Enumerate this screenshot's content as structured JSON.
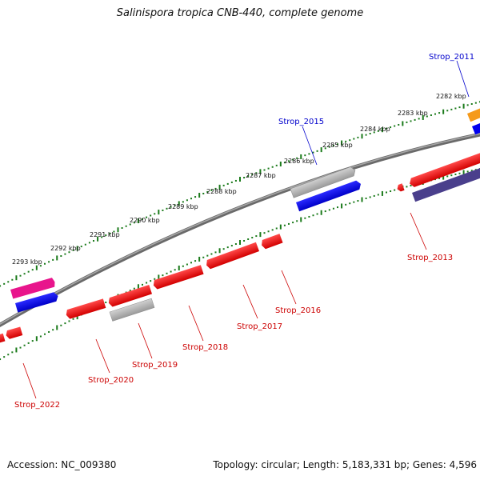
{
  "title": "Salinispora tropica CNB-440, complete genome",
  "footer": {
    "accession": "Accession: NC_009380",
    "summary": "Topology: circular; Length: 5,183,331 bp; Genes: 4,596"
  },
  "ruler": {
    "tick_color": "#1a7a1a",
    "labels": [
      "2282 kbp",
      "2283 kbp",
      "2284 kbp",
      "2285 kbp",
      "2286 kbp",
      "2287 kbp",
      "2288 kbp",
      "2289 kbp",
      "2290 kbp",
      "2291 kbp",
      "2292 kbp",
      "2293 kbp"
    ]
  },
  "colors": {
    "backbone": "#808080",
    "cds": "#ee0000",
    "blue": "#0000ee",
    "gray": "#b5b5b5",
    "magenta": "#e8158c",
    "orange": "#f59a1a",
    "navy": "#4a3f8c",
    "label_above": "#0000cc",
    "label_below": "#cc0000"
  },
  "gene_labels": {
    "above": [
      "Strop_2011",
      "Strop_2015"
    ],
    "below": [
      "Strop_2013",
      "Strop_2016",
      "Strop_2017",
      "Strop_2018",
      "Strop_2019",
      "Strop_2020",
      "Strop_2022"
    ]
  }
}
